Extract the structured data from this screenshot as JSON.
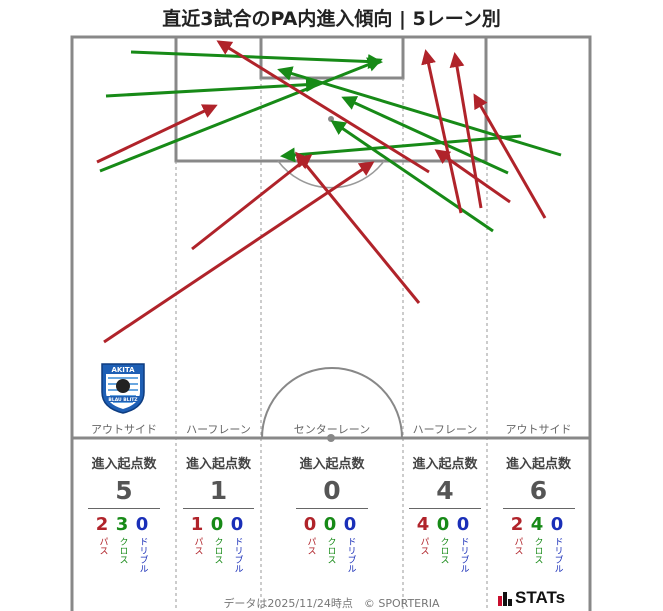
{
  "title": "直近3試合のPA内進入傾向 | 5レーン別",
  "lanes": [
    {
      "label": "アウトサイド",
      "header": "進入起点数",
      "total": "5",
      "pass": "2",
      "cross": "3",
      "dribble": "0"
    },
    {
      "label": "ハーフレーン",
      "header": "進入起点数",
      "total": "1",
      "pass": "1",
      "cross": "0",
      "dribble": "0"
    },
    {
      "label": "センターレーン",
      "header": "進入起点数",
      "total": "0",
      "pass": "0",
      "cross": "0",
      "dribble": "0"
    },
    {
      "label": "ハーフレーン",
      "header": "進入起点数",
      "total": "4",
      "pass": "4",
      "cross": "0",
      "dribble": "0"
    },
    {
      "label": "アウトサイド",
      "header": "進入起点数",
      "total": "6",
      "pass": "2",
      "cross": "4",
      "dribble": "0"
    }
  ],
  "legend": {
    "pass": "パス",
    "cross": "クロス",
    "dribble": "ドリブル"
  },
  "colors": {
    "pass": "#b0232a",
    "cross": "#178a17",
    "dribble": "#1a2fb8"
  },
  "crest": {
    "top_text": "AKITA",
    "bottom_text": "BLAU BLITZ"
  },
  "footer": "データは2025/11/24時点　© SPORTERIA",
  "brand": "STATs"
}
